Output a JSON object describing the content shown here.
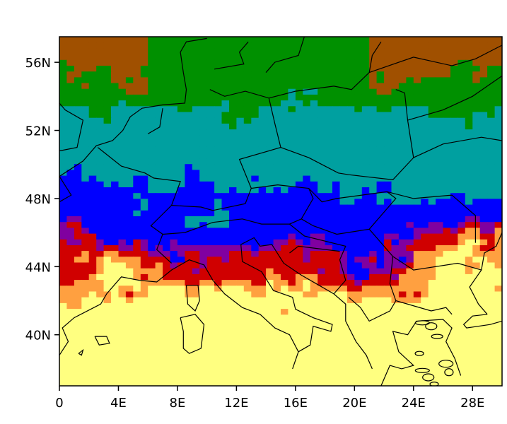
{
  "map": {
    "type": "gridded-field-map",
    "lon_range": [
      0,
      30
    ],
    "lat_range": [
      37,
      57.5
    ],
    "x_ticks": [
      {
        "value": 0,
        "label": "0"
      },
      {
        "value": 4,
        "label": "4E"
      },
      {
        "value": 8,
        "label": "8E"
      },
      {
        "value": 12,
        "label": "12E"
      },
      {
        "value": 16,
        "label": "16E"
      },
      {
        "value": 20,
        "label": "20E"
      },
      {
        "value": 24,
        "label": "24E"
      },
      {
        "value": 28,
        "label": "28E"
      }
    ],
    "y_ticks": [
      {
        "value": 56,
        "label": "56N"
      },
      {
        "value": 52,
        "label": "52N"
      },
      {
        "value": 48,
        "label": "48N"
      },
      {
        "value": 44,
        "label": "44N"
      },
      {
        "value": 40,
        "label": "40N"
      }
    ],
    "palette": {
      "yellow": "#ffff80",
      "orange": "#ffa040",
      "red": "#d00000",
      "purple": "#8000a0",
      "blue": "#0000ff",
      "teal": "#00a0a0",
      "green": "#009000",
      "brown": "#a05000"
    },
    "coastline_color": "#000000",
    "legend": "none"
  }
}
